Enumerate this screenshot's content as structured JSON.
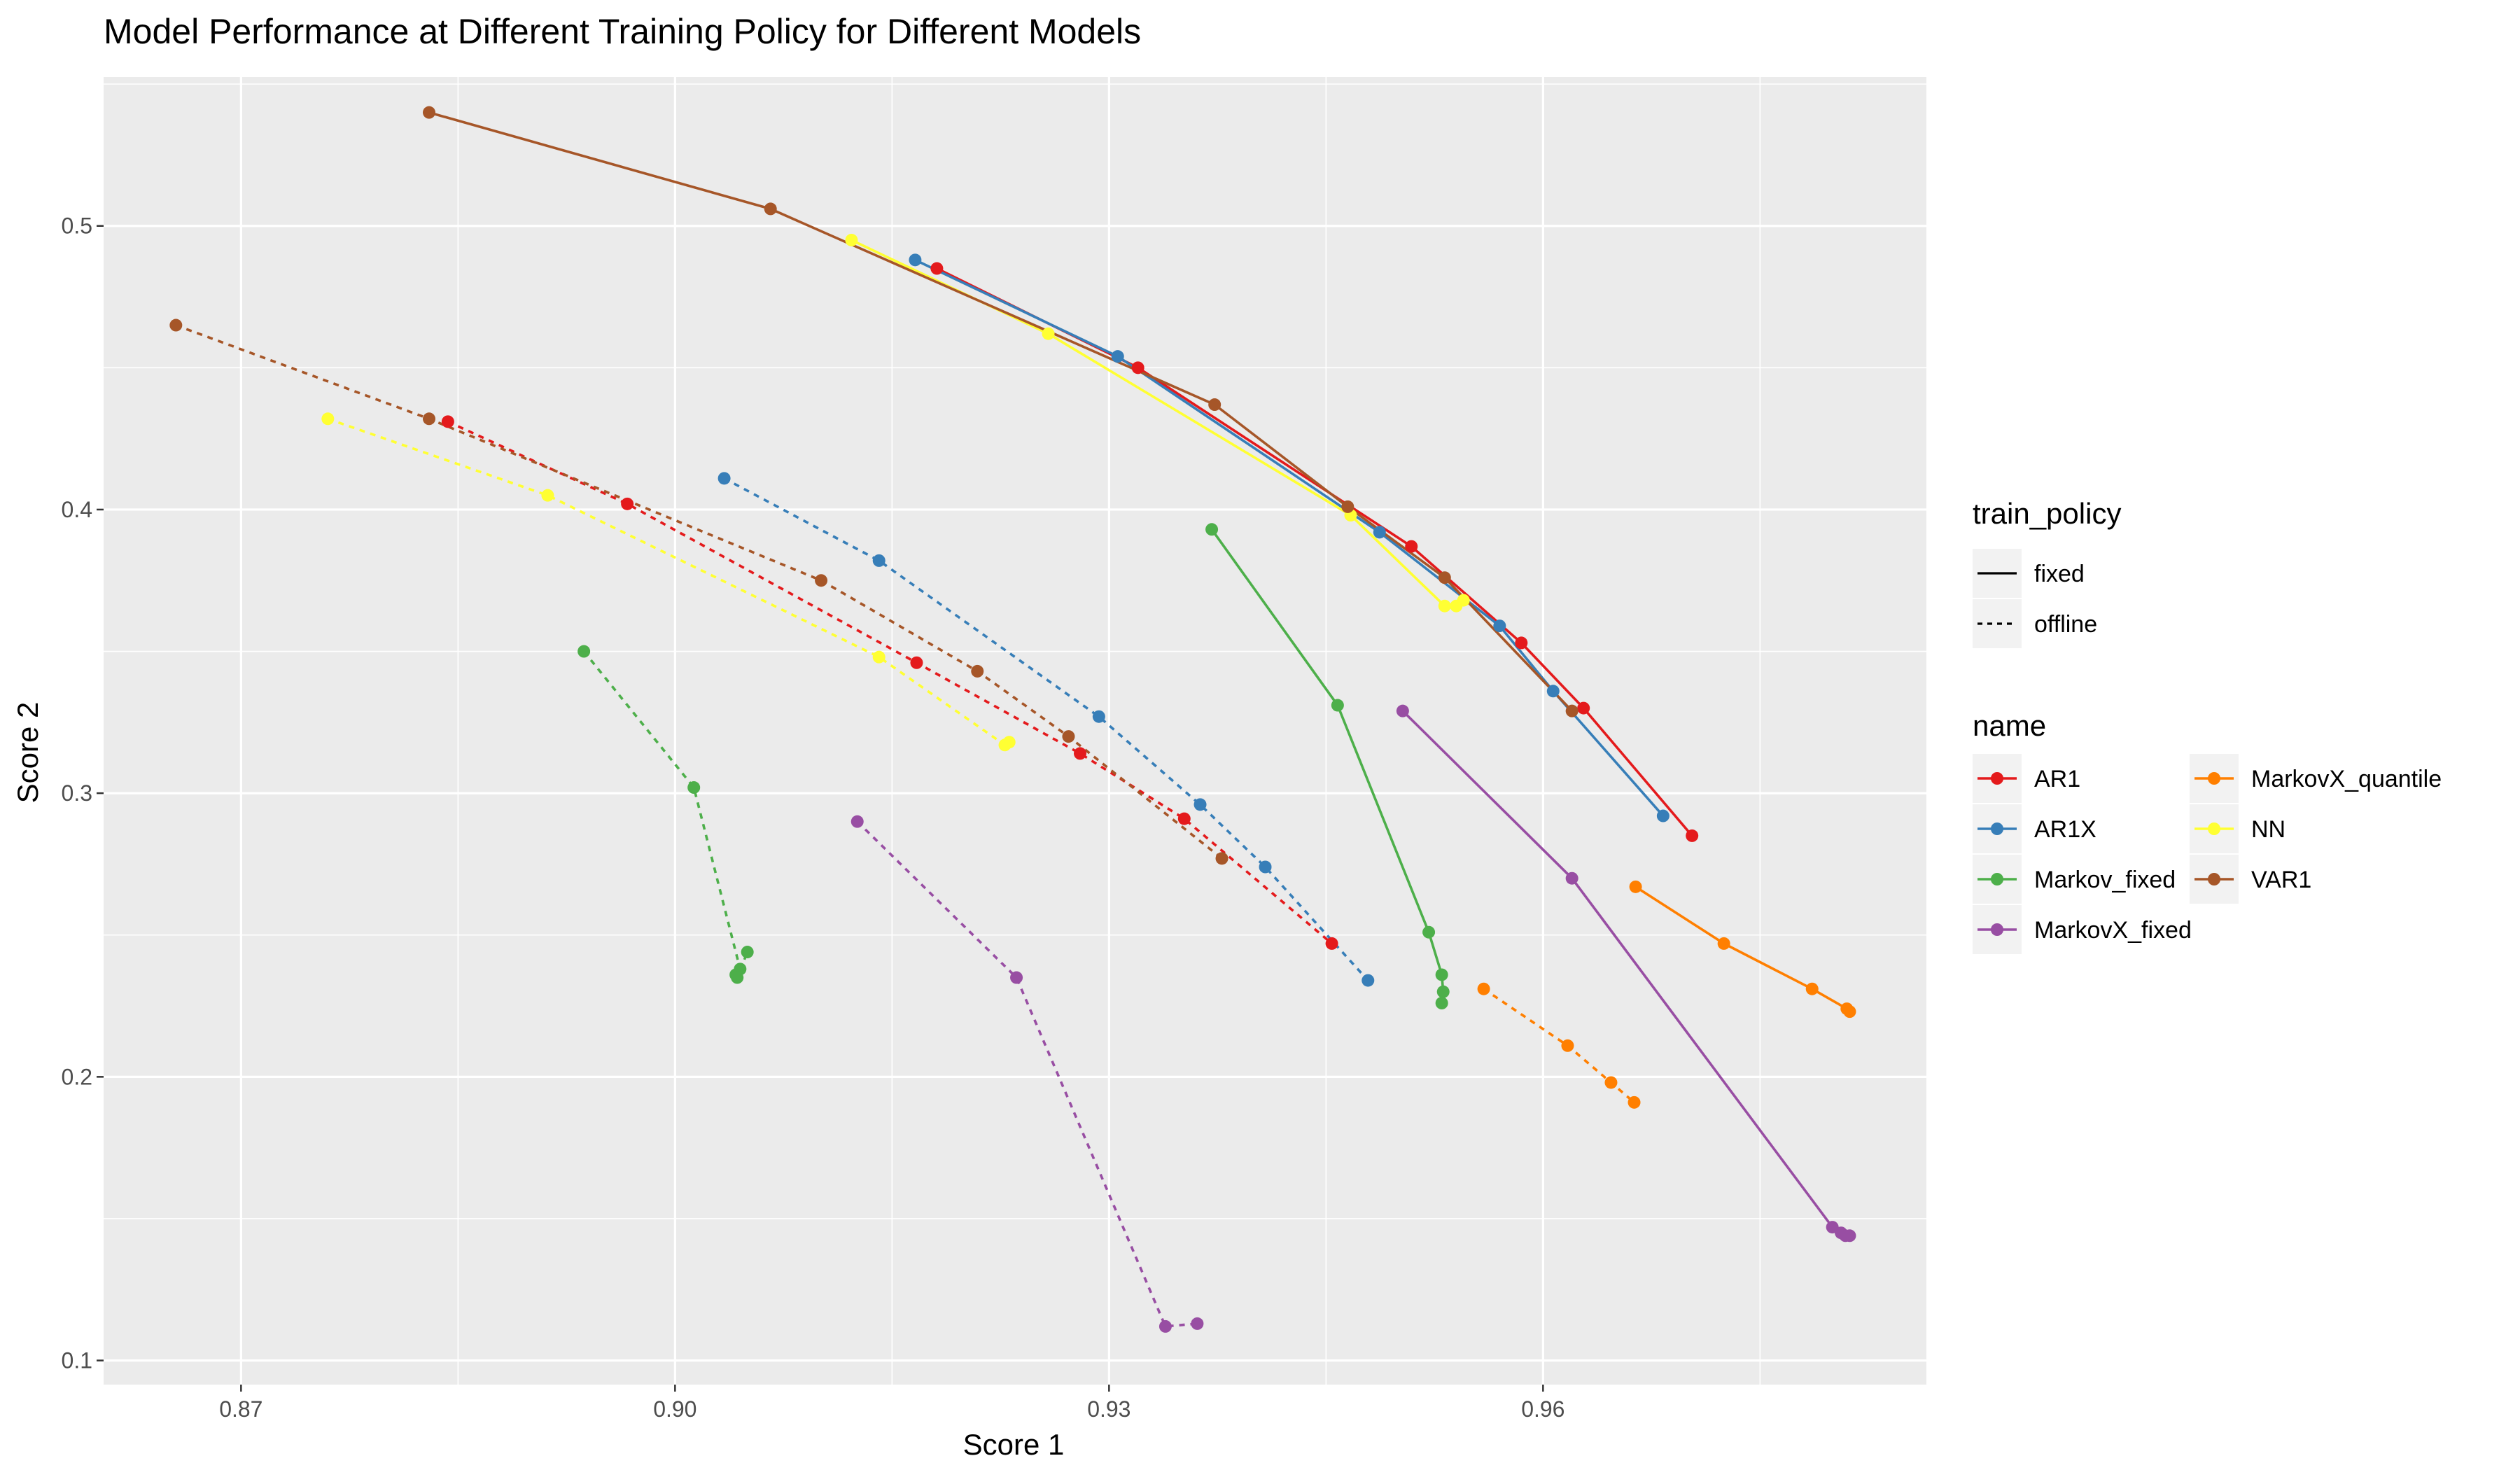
{
  "chart_data": {
    "type": "line",
    "title": "Model Performance at Different Training Policy for Different Models",
    "xlabel": "Score 1",
    "ylabel": "Score 2",
    "xlim": [
      0.8605,
      0.9865
    ],
    "ylim": [
      0.0915,
      0.5525
    ],
    "x_ticks": [
      0.87,
      0.9,
      0.93,
      0.96
    ],
    "x_tick_labels": [
      "0.87",
      "0.90",
      "0.93",
      "0.96"
    ],
    "y_ticks": [
      0.1,
      0.2,
      0.3,
      0.4,
      0.5
    ],
    "y_tick_labels": [
      "0.1",
      "0.2",
      "0.3",
      "0.4",
      "0.5"
    ],
    "grid": true,
    "legends": [
      {
        "title": "train_policy",
        "placement": "right",
        "entries": [
          {
            "label": "fixed",
            "dash": "solid"
          },
          {
            "label": "offline",
            "dash": "dotted"
          }
        ]
      },
      {
        "title": "name",
        "placement": "right",
        "entries": [
          {
            "label": "AR1",
            "color": "#E41A1C"
          },
          {
            "label": "AR1X",
            "color": "#377EB8"
          },
          {
            "label": "Markov_fixed",
            "color": "#4DAF4A"
          },
          {
            "label": "MarkovX_fixed",
            "color": "#984EA3"
          },
          {
            "label": "MarkovX_quantile",
            "color": "#FF7F00"
          },
          {
            "label": "NN",
            "color": "#FFFF33"
          },
          {
            "label": "VAR1",
            "color": "#A65628"
          }
        ]
      }
    ],
    "series": [
      {
        "model": "AR1",
        "policy": "fixed",
        "color": "#E41A1C",
        "x": [
          0.9181,
          0.932,
          0.9509,
          0.9585,
          0.9628,
          0.9703
        ],
        "y": [
          0.485,
          0.45,
          0.387,
          0.353,
          0.33,
          0.285
        ]
      },
      {
        "model": "AR1X",
        "policy": "fixed",
        "color": "#377EB8",
        "x": [
          0.9166,
          0.9306,
          0.9487,
          0.957,
          0.9607,
          0.9683
        ],
        "y": [
          0.488,
          0.454,
          0.392,
          0.359,
          0.336,
          0.292
        ]
      },
      {
        "model": "NN",
        "policy": "fixed",
        "color": "#FFFF33",
        "x": [
          0.9122,
          0.9258,
          0.9467,
          0.9532,
          0.954,
          0.9545
        ],
        "y": [
          0.495,
          0.462,
          0.398,
          0.366,
          0.366,
          0.368
        ]
      },
      {
        "model": "VAR1",
        "policy": "fixed",
        "color": "#A65628",
        "x": [
          0.883,
          0.9066,
          0.9373,
          0.9465,
          0.9532,
          0.962
        ],
        "y": [
          0.54,
          0.506,
          0.437,
          0.401,
          0.376,
          0.329
        ]
      },
      {
        "model": "Markov_fixed",
        "policy": "fixed",
        "color": "#4DAF4A",
        "x": [
          0.9371,
          0.9458,
          0.9521,
          0.953,
          0.9531,
          0.953
        ],
        "y": [
          0.393,
          0.331,
          0.251,
          0.236,
          0.23,
          0.226
        ]
      },
      {
        "model": "MarkovX_fixed",
        "policy": "fixed",
        "color": "#984EA3",
        "x": [
          0.9503,
          0.962,
          0.98,
          0.9806,
          0.9809,
          0.9812
        ],
        "y": [
          0.329,
          0.27,
          0.147,
          0.145,
          0.144,
          0.144
        ]
      },
      {
        "model": "MarkovX_quantile",
        "policy": "fixed",
        "color": "#FF7F00",
        "x": [
          0.9664,
          0.9725,
          0.9786,
          0.981,
          0.9812
        ],
        "y": [
          0.267,
          0.247,
          0.231,
          0.224,
          0.223
        ]
      },
      {
        "model": "AR1",
        "policy": "offline",
        "color": "#E41A1C",
        "x": [
          0.8843,
          0.8967,
          0.9167,
          0.928,
          0.9352,
          0.9454
        ],
        "y": [
          0.431,
          0.402,
          0.346,
          0.314,
          0.291,
          0.247
        ]
      },
      {
        "model": "AR1X",
        "policy": "offline",
        "color": "#377EB8",
        "x": [
          0.9034,
          0.9141,
          0.9293,
          0.9363,
          0.9408,
          0.9479
        ],
        "y": [
          0.411,
          0.382,
          0.327,
          0.296,
          0.274,
          0.234
        ]
      },
      {
        "model": "NN",
        "policy": "offline",
        "color": "#FFFF33",
        "x": [
          0.876,
          0.8912,
          0.9141,
          0.9228,
          0.9231
        ],
        "y": [
          0.432,
          0.405,
          0.348,
          0.317,
          0.318
        ]
      },
      {
        "model": "VAR1",
        "policy": "offline",
        "color": "#A65628",
        "x": [
          0.8655,
          0.883,
          0.9101,
          0.9209,
          0.9272,
          0.9378
        ],
        "y": [
          0.465,
          0.432,
          0.375,
          0.343,
          0.32,
          0.277
        ]
      },
      {
        "model": "Markov_fixed",
        "policy": "offline",
        "color": "#4DAF4A",
        "x": [
          0.8937,
          0.9013,
          0.9045,
          0.9042,
          0.9043,
          0.905
        ],
        "y": [
          0.35,
          0.302,
          0.238,
          0.236,
          0.235,
          0.244
        ]
      },
      {
        "model": "MarkovX_fixed",
        "policy": "offline",
        "color": "#984EA3",
        "x": [
          0.9126,
          0.9236,
          0.9339,
          0.9361
        ],
        "y": [
          0.29,
          0.235,
          0.112,
          0.113
        ]
      },
      {
        "model": "MarkovX_quantile",
        "policy": "offline",
        "color": "#FF7F00",
        "x": [
          0.9559,
          0.9617,
          0.9647,
          0.9663
        ],
        "y": [
          0.231,
          0.211,
          0.198,
          0.191
        ]
      }
    ]
  }
}
